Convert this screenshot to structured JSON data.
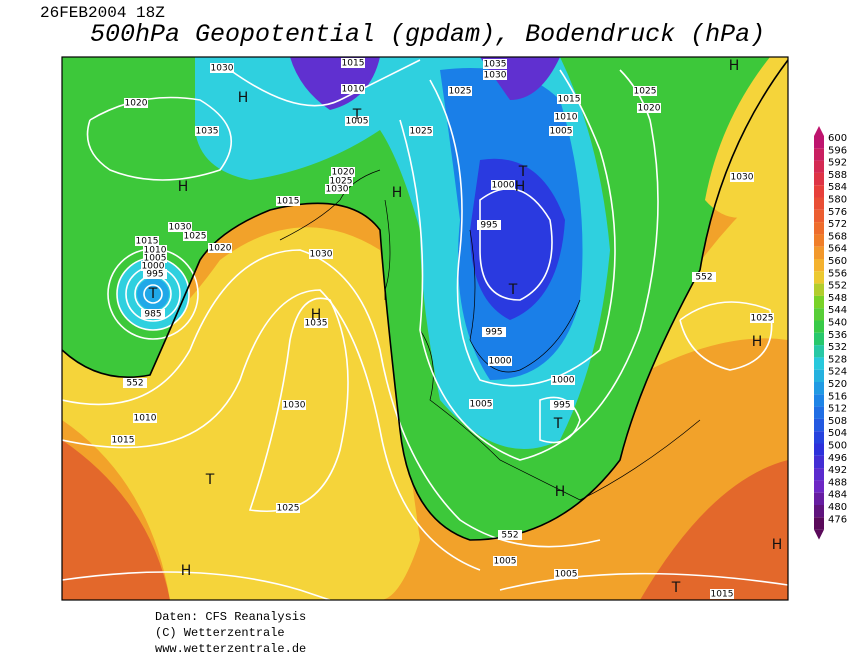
{
  "header": {
    "date": "26FEB2004 18Z",
    "title": "500hPa Geopotential (gpdam), Bodendruck (hPa)"
  },
  "map": {
    "pressure_labels": [
      "1030",
      "1015",
      "1035",
      "1030",
      "1020",
      "1010",
      "1005",
      "1025",
      "1015",
      "1025",
      "1020",
      "1010",
      "1005",
      "1035",
      "1025",
      "1020",
      "1025",
      "1030",
      "1015",
      "1000",
      "1030",
      "1030",
      "1025",
      "995",
      "1020",
      "1015",
      "1010",
      "1005",
      "1000",
      "995",
      "1030",
      "552",
      "985",
      "1035",
      "1025",
      "995",
      "552",
      "1000",
      "1000",
      "1010",
      "1005",
      "995",
      "1030",
      "1015",
      "1025",
      "552",
      "1005",
      "1005",
      "1015"
    ],
    "centers": [
      "H",
      "T",
      "H",
      "H",
      "T",
      "H",
      "T",
      "H",
      "T",
      "H",
      "T",
      "T",
      "H",
      "H",
      "H",
      "T",
      "H"
    ]
  },
  "colorbar": {
    "values": [
      600,
      596,
      592,
      588,
      584,
      580,
      576,
      572,
      568,
      564,
      560,
      556,
      552,
      548,
      544,
      540,
      536,
      532,
      528,
      524,
      520,
      516,
      512,
      508,
      504,
      500,
      496,
      492,
      488,
      484,
      480,
      476
    ]
  },
  "footer": {
    "lines": [
      "Daten: CFS Reanalysis",
      "(C) Wetterzentrale",
      "www.wetterzentrale.de"
    ]
  }
}
